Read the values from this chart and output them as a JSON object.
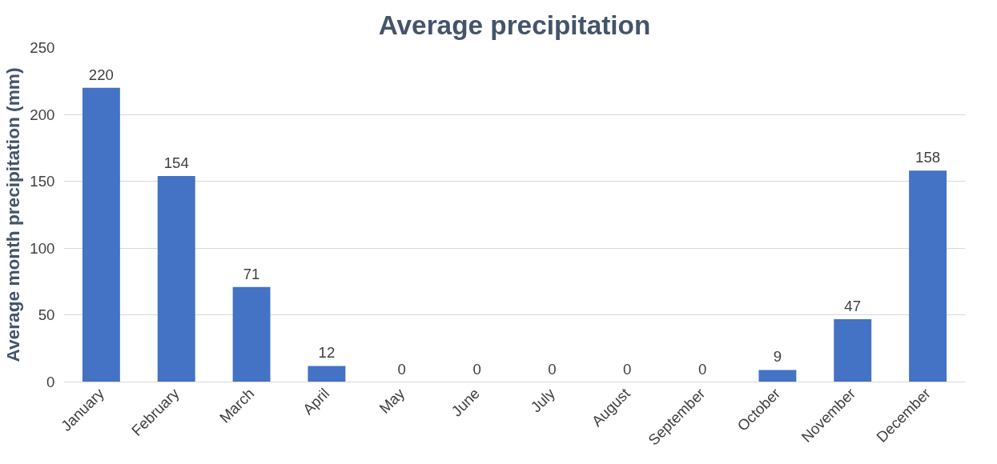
{
  "chart_data": {
    "type": "bar",
    "title": "Average precipitation",
    "ylabel": "Average month precipitation (mm)",
    "categories": [
      "January",
      "February",
      "March",
      "April",
      "May",
      "June",
      "July",
      "August",
      "September",
      "October",
      "November",
      "December"
    ],
    "values": [
      220,
      154,
      71,
      12,
      0,
      0,
      0,
      0,
      0,
      9,
      47,
      158
    ],
    "color": "#4472c4",
    "ylim": [
      0,
      250
    ],
    "yticks": [
      0,
      50,
      100,
      150,
      200,
      250
    ],
    "grid": "y",
    "data_labels": true
  }
}
